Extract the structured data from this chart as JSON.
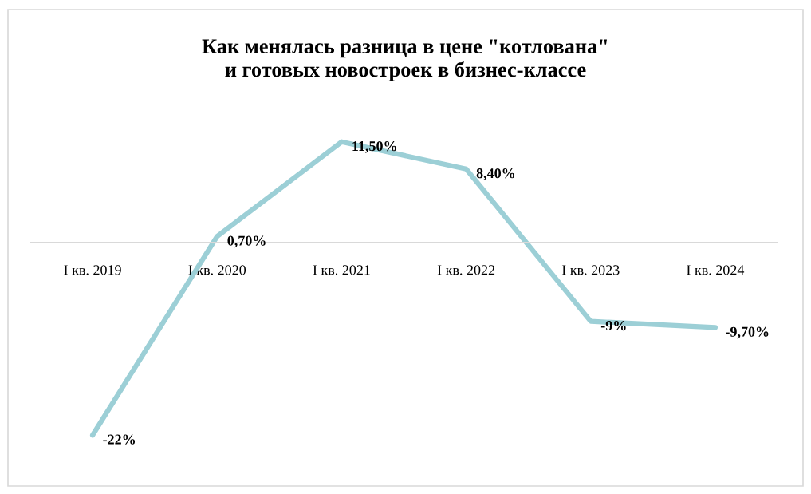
{
  "chart_data": {
    "type": "line",
    "title": "Как менялась разница в цене \"котлована\"\nи готовых новостроек в бизнес-классе",
    "categories": [
      "I кв. 2019",
      "I кв. 2020",
      "I кв. 2021",
      "I кв. 2022",
      "I кв. 2023",
      "I кв. 2024"
    ],
    "series": [
      {
        "color": "#9ccfd6",
        "values": [
          -22,
          0.7,
          11.5,
          8.4,
          -9,
          -9.7
        ],
        "value_labels": [
          "-22%",
          "0,70%",
          "11,50%",
          "8,40%",
          "-9%",
          "-9,70%"
        ]
      }
    ],
    "marker": "none",
    "line_style": "solid",
    "tick_labels": "x"
  }
}
